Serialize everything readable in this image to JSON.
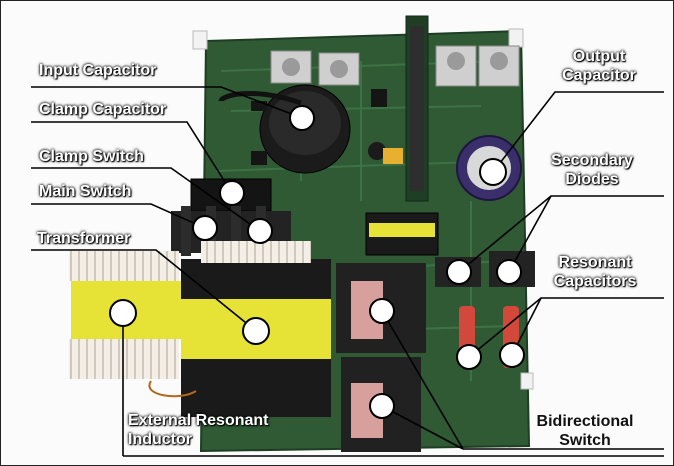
{
  "labels": {
    "input_capacitor": "Input Capacitor",
    "clamp_capacitor": "Clamp Capacitor",
    "clamp_switch": "Clamp Switch",
    "main_switch": "Main Switch",
    "transformer": "Transformer",
    "external_resonant_inductor_line1": "External Resonant",
    "external_resonant_inductor_line2": "Inductor",
    "output_capacitor_line1": "Output",
    "output_capacitor_line2": "Capacitor",
    "secondary_diodes_line1": "Secondary",
    "secondary_diodes_line2": "Diodes",
    "resonant_capacitors_line1": "Resonant",
    "resonant_capacitors_line2": "Capacitors",
    "bidirectional_switch_line1": "Bidirectional",
    "bidirectional_switch_line2": "Switch"
  },
  "colors": {
    "pcb": "#2f5a34",
    "transformer_tape": "#e6e236",
    "capacitor": "#1b1b1b",
    "heatsink": "#232323",
    "resistor": "#d2483a",
    "marker": "#ffffff",
    "leader": "#000000"
  }
}
